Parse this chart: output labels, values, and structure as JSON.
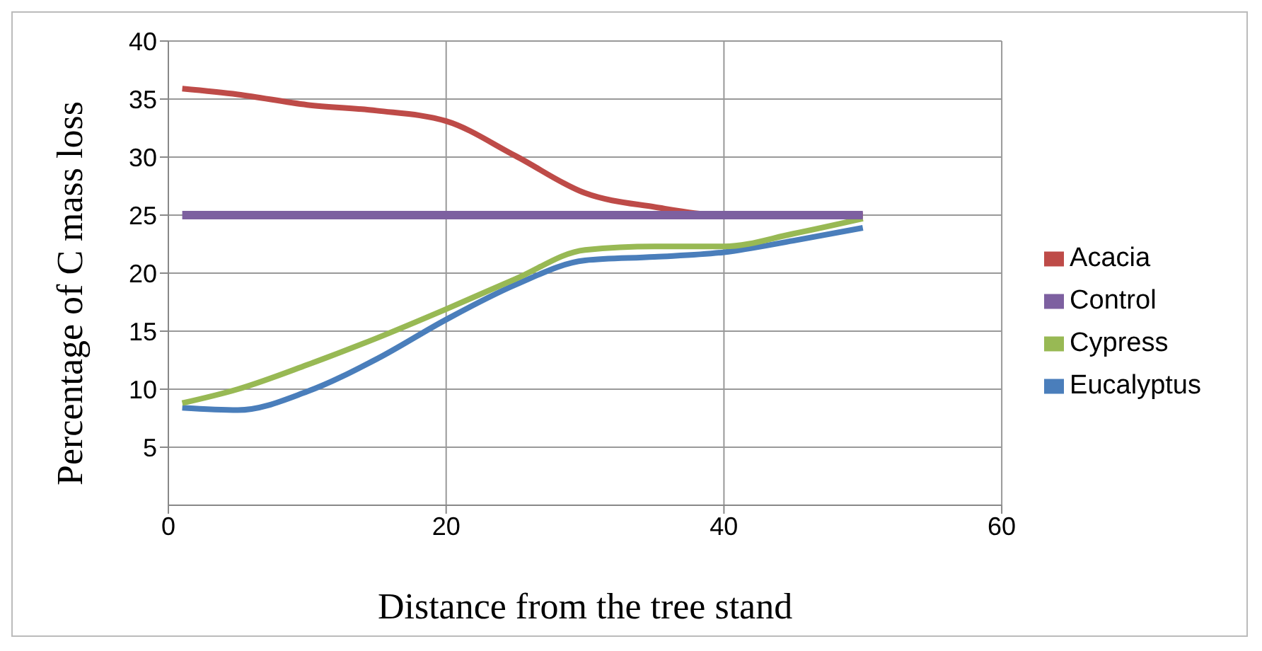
{
  "chart_data": {
    "type": "line",
    "xlabel": "Distance from the tree stand",
    "ylabel": "Percentage of C mass loss",
    "xlim": [
      0,
      60
    ],
    "xticks": [
      0,
      20,
      40,
      60
    ],
    "ylim": [
      0,
      40
    ],
    "yticks": [
      5,
      10,
      15,
      20,
      25,
      30,
      35,
      40
    ],
    "grid": true,
    "legend": "right",
    "marker": "none",
    "line_style": "solid",
    "series": [
      {
        "name": "Eucalyptus",
        "color": "#4a7ebb",
        "x": [
          1,
          5,
          10,
          15,
          20,
          25,
          30,
          35,
          40,
          45,
          50
        ],
        "values": [
          8.4,
          8.2,
          9.8,
          12.6,
          16.0,
          19.0,
          21.1,
          21.4,
          21.8,
          22.8,
          23.9
        ]
      },
      {
        "name": "Acacia",
        "color": "#be4b48",
        "x": [
          1,
          5,
          10,
          15,
          20,
          25,
          30,
          35,
          40,
          45,
          50
        ],
        "values": [
          35.9,
          35.4,
          34.5,
          34.0,
          33.1,
          30.1,
          26.9,
          25.7,
          25.0,
          25.0,
          25.0
        ]
      },
      {
        "name": "Cypress",
        "color": "#98b954",
        "x": [
          1,
          5,
          10,
          15,
          20,
          25,
          30,
          35,
          40,
          45,
          50
        ],
        "values": [
          8.8,
          10.0,
          12.1,
          14.4,
          16.9,
          19.5,
          22.0,
          22.3,
          22.3,
          23.4,
          24.7
        ]
      },
      {
        "name": "Control",
        "color": "#7d60a0",
        "x": [
          1,
          50
        ],
        "values": [
          25,
          25
        ]
      }
    ]
  }
}
